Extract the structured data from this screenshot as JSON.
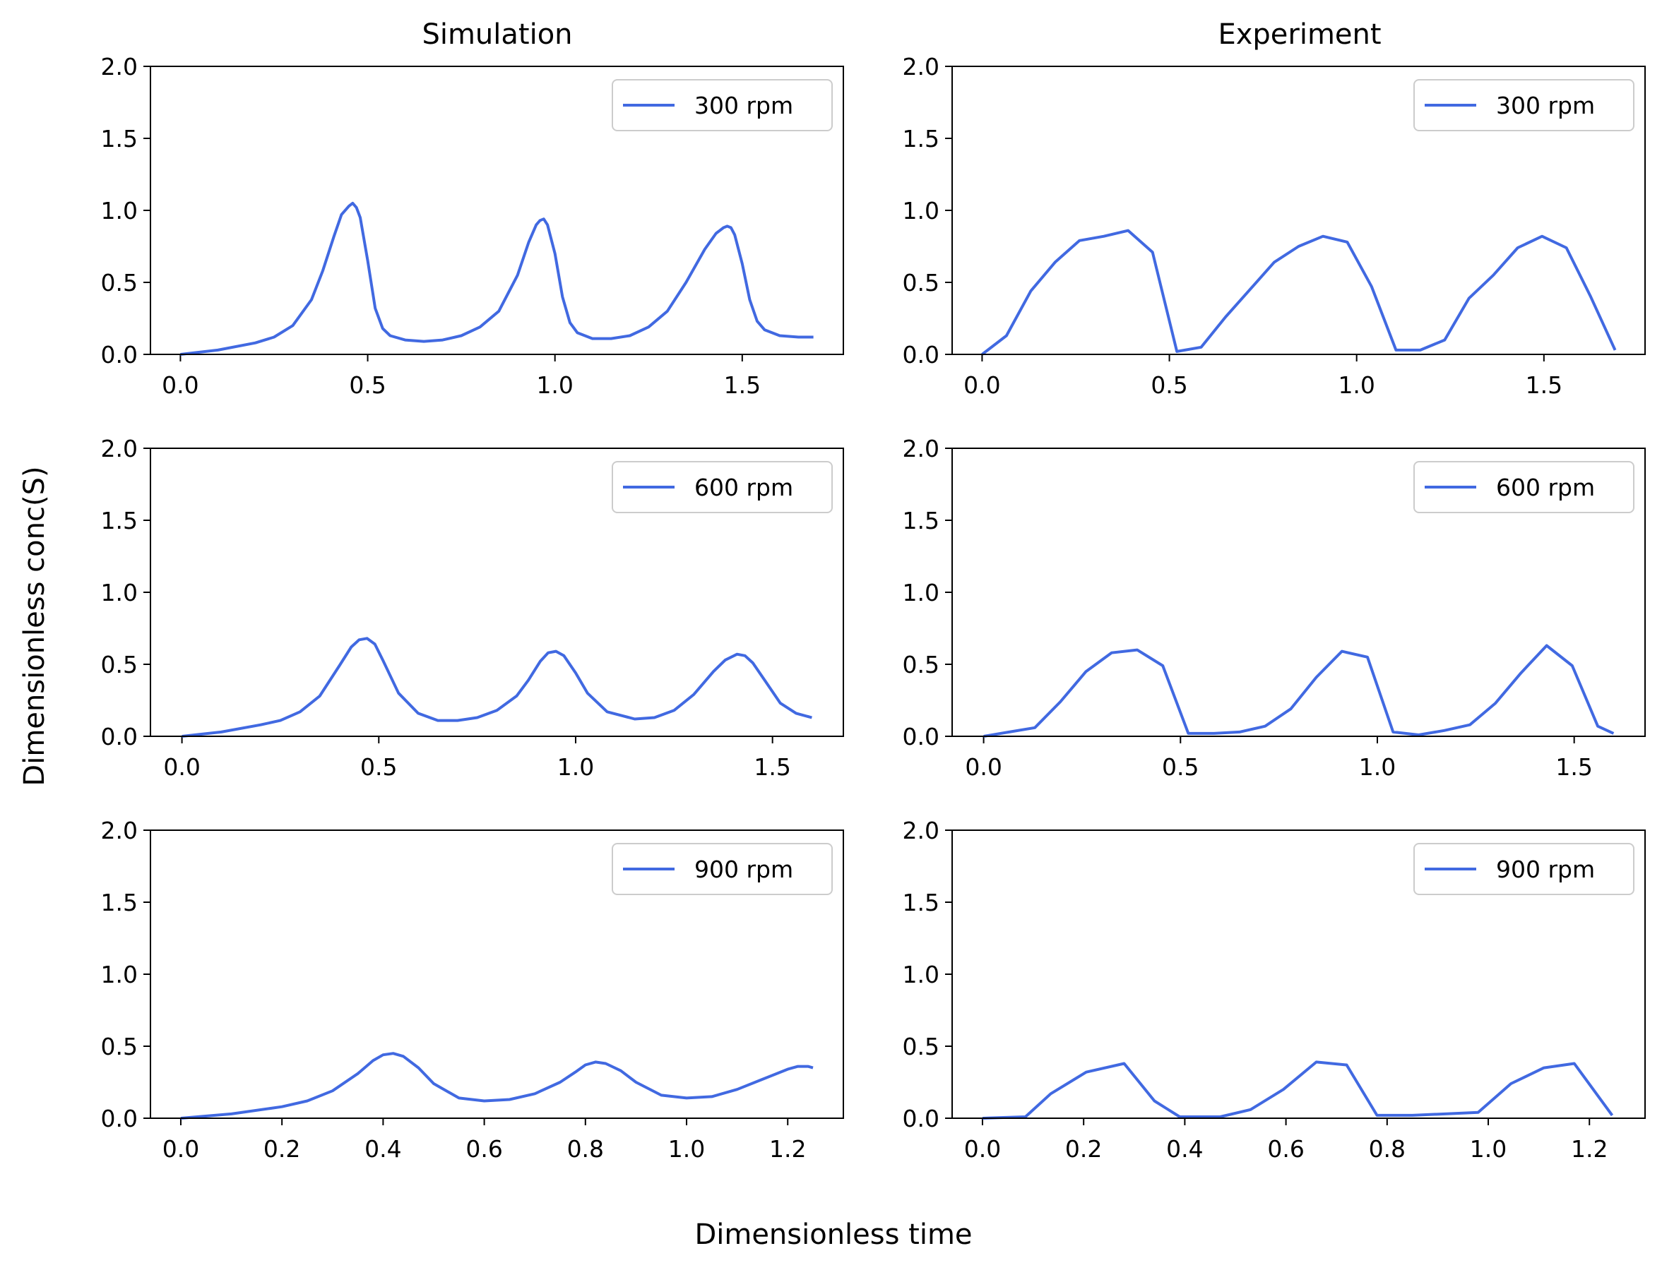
{
  "figure": {
    "xlabel": "Dimensionless time",
    "ylabel": "Dimensionless conc(S)",
    "column_titles": [
      "Simulation",
      "Experiment"
    ]
  },
  "colors": {
    "series": "#4169e1",
    "axis": "#000000",
    "legend_border": "#cccccc"
  },
  "chart_data": [
    {
      "type": "line",
      "panel": "simulation-300",
      "xlim": [
        -0.08,
        1.77
      ],
      "ylim": [
        0,
        2
      ],
      "xticks": [
        0,
        0.5,
        1,
        1.5
      ],
      "xtick_labels": [
        "0.0",
        "0.5",
        "1.0",
        "1.5"
      ],
      "yticks": [
        0,
        0.5,
        1,
        1.5,
        2
      ],
      "ytick_labels": [
        "0.0",
        "0.5",
        "1.0",
        "1.5",
        "2.0"
      ],
      "legend_position": "top-right",
      "grid": false,
      "series": [
        {
          "name": "300 rpm",
          "x": [
            0,
            0.1,
            0.2,
            0.25,
            0.3,
            0.35,
            0.38,
            0.41,
            0.43,
            0.45,
            0.46,
            0.47,
            0.48,
            0.5,
            0.52,
            0.54,
            0.56,
            0.6,
            0.65,
            0.7,
            0.75,
            0.8,
            0.85,
            0.9,
            0.93,
            0.95,
            0.96,
            0.97,
            0.98,
            1.0,
            1.02,
            1.04,
            1.06,
            1.1,
            1.15,
            1.2,
            1.25,
            1.3,
            1.35,
            1.4,
            1.43,
            1.45,
            1.46,
            1.47,
            1.48,
            1.5,
            1.52,
            1.54,
            1.56,
            1.6,
            1.65,
            1.69
          ],
          "y": [
            0,
            0.03,
            0.08,
            0.12,
            0.2,
            0.38,
            0.58,
            0.82,
            0.97,
            1.03,
            1.05,
            1.02,
            0.95,
            0.65,
            0.32,
            0.18,
            0.13,
            0.1,
            0.09,
            0.1,
            0.13,
            0.19,
            0.3,
            0.55,
            0.78,
            0.9,
            0.93,
            0.94,
            0.9,
            0.7,
            0.4,
            0.22,
            0.15,
            0.11,
            0.11,
            0.13,
            0.19,
            0.3,
            0.5,
            0.73,
            0.84,
            0.88,
            0.89,
            0.88,
            0.83,
            0.63,
            0.38,
            0.23,
            0.17,
            0.13,
            0.12,
            0.12
          ]
        }
      ]
    },
    {
      "type": "line",
      "panel": "experiment-300",
      "xlim": [
        -0.08,
        1.77
      ],
      "ylim": [
        0,
        2
      ],
      "xticks": [
        0,
        0.5,
        1,
        1.5
      ],
      "xtick_labels": [
        "0.0",
        "0.5",
        "1.0",
        "1.5"
      ],
      "yticks": [
        0,
        0.5,
        1,
        1.5,
        2
      ],
      "ytick_labels": [
        "0.0",
        "0.5",
        "1.0",
        "1.5",
        "2.0"
      ],
      "legend_position": "top-right",
      "grid": false,
      "series": [
        {
          "name": "300 rpm",
          "x": [
            0,
            0.065,
            0.13,
            0.195,
            0.26,
            0.325,
            0.39,
            0.455,
            0.52,
            0.585,
            0.65,
            0.715,
            0.78,
            0.845,
            0.91,
            0.975,
            1.04,
            1.105,
            1.17,
            1.235,
            1.3,
            1.365,
            1.43,
            1.495,
            1.56,
            1.625,
            1.69
          ],
          "y": [
            0,
            0.13,
            0.44,
            0.64,
            0.79,
            0.82,
            0.86,
            0.71,
            0.02,
            0.05,
            0.26,
            0.45,
            0.64,
            0.75,
            0.82,
            0.78,
            0.47,
            0.03,
            0.03,
            0.1,
            0.39,
            0.55,
            0.74,
            0.82,
            0.74,
            0.4,
            0.03
          ]
        }
      ]
    },
    {
      "type": "line",
      "panel": "simulation-600",
      "xlim": [
        -0.08,
        1.68
      ],
      "ylim": [
        0,
        2
      ],
      "xticks": [
        0,
        0.5,
        1,
        1.5
      ],
      "xtick_labels": [
        "0.0",
        "0.5",
        "1.0",
        "1.5"
      ],
      "yticks": [
        0,
        0.5,
        1,
        1.5,
        2
      ],
      "ytick_labels": [
        "0.0",
        "0.5",
        "1.0",
        "1.5",
        "2.0"
      ],
      "legend_position": "top-right",
      "grid": false,
      "series": [
        {
          "name": "600 rpm",
          "x": [
            0,
            0.1,
            0.2,
            0.25,
            0.3,
            0.35,
            0.4,
            0.43,
            0.45,
            0.47,
            0.49,
            0.51,
            0.55,
            0.6,
            0.65,
            0.7,
            0.75,
            0.8,
            0.85,
            0.88,
            0.91,
            0.93,
            0.95,
            0.97,
            1.0,
            1.03,
            1.08,
            1.15,
            1.2,
            1.25,
            1.3,
            1.35,
            1.38,
            1.41,
            1.43,
            1.45,
            1.48,
            1.52,
            1.56,
            1.6
          ],
          "y": [
            0,
            0.03,
            0.08,
            0.11,
            0.17,
            0.28,
            0.49,
            0.62,
            0.67,
            0.68,
            0.64,
            0.53,
            0.3,
            0.16,
            0.11,
            0.11,
            0.13,
            0.18,
            0.28,
            0.39,
            0.52,
            0.58,
            0.59,
            0.56,
            0.44,
            0.3,
            0.17,
            0.12,
            0.13,
            0.18,
            0.29,
            0.45,
            0.53,
            0.57,
            0.56,
            0.51,
            0.39,
            0.23,
            0.16,
            0.13
          ]
        }
      ]
    },
    {
      "type": "line",
      "panel": "experiment-600",
      "xlim": [
        -0.08,
        1.68
      ],
      "ylim": [
        0,
        2
      ],
      "xticks": [
        0,
        0.5,
        1,
        1.5
      ],
      "xtick_labels": [
        "0.0",
        "0.5",
        "1.0",
        "1.5"
      ],
      "yticks": [
        0,
        0.5,
        1,
        1.5,
        2
      ],
      "ytick_labels": [
        "0.0",
        "0.5",
        "1.0",
        "1.5",
        "2.0"
      ],
      "legend_position": "top-right",
      "grid": false,
      "series": [
        {
          "name": "600 rpm",
          "x": [
            0,
            0.065,
            0.13,
            0.195,
            0.26,
            0.325,
            0.39,
            0.455,
            0.52,
            0.585,
            0.65,
            0.715,
            0.78,
            0.845,
            0.91,
            0.975,
            1.04,
            1.105,
            1.17,
            1.235,
            1.3,
            1.365,
            1.43,
            1.495,
            1.56,
            1.6
          ],
          "y": [
            0,
            0.03,
            0.06,
            0.24,
            0.45,
            0.58,
            0.6,
            0.49,
            0.02,
            0.02,
            0.03,
            0.07,
            0.19,
            0.41,
            0.59,
            0.55,
            0.03,
            0.01,
            0.04,
            0.08,
            0.23,
            0.44,
            0.63,
            0.49,
            0.07,
            0.02
          ]
        }
      ]
    },
    {
      "type": "line",
      "panel": "simulation-900",
      "xlim": [
        -0.06,
        1.31
      ],
      "ylim": [
        0,
        2
      ],
      "xticks": [
        0,
        0.2,
        0.4,
        0.6,
        0.8,
        1.0,
        1.2
      ],
      "xtick_labels": [
        "0.0",
        "0.2",
        "0.4",
        "0.6",
        "0.8",
        "1.0",
        "1.2"
      ],
      "yticks": [
        0,
        0.5,
        1,
        1.5,
        2
      ],
      "ytick_labels": [
        "0.0",
        "0.5",
        "1.0",
        "1.5",
        "2.0"
      ],
      "legend_position": "top-right",
      "grid": false,
      "series": [
        {
          "name": "900 rpm",
          "x": [
            0,
            0.1,
            0.2,
            0.25,
            0.3,
            0.35,
            0.38,
            0.4,
            0.42,
            0.44,
            0.47,
            0.5,
            0.55,
            0.6,
            0.65,
            0.7,
            0.75,
            0.78,
            0.8,
            0.82,
            0.84,
            0.87,
            0.9,
            0.95,
            1.0,
            1.05,
            1.1,
            1.15,
            1.2,
            1.22,
            1.24,
            1.25
          ],
          "y": [
            0,
            0.03,
            0.08,
            0.12,
            0.19,
            0.31,
            0.4,
            0.44,
            0.45,
            0.43,
            0.35,
            0.24,
            0.14,
            0.12,
            0.13,
            0.17,
            0.25,
            0.32,
            0.37,
            0.39,
            0.38,
            0.33,
            0.25,
            0.16,
            0.14,
            0.15,
            0.2,
            0.27,
            0.34,
            0.36,
            0.36,
            0.35
          ]
        }
      ]
    },
    {
      "type": "line",
      "panel": "experiment-900",
      "xlim": [
        -0.06,
        1.31
      ],
      "ylim": [
        0,
        2
      ],
      "xticks": [
        0,
        0.2,
        0.4,
        0.6,
        0.8,
        1.0,
        1.2
      ],
      "xtick_labels": [
        "0.0",
        "0.2",
        "0.4",
        "0.6",
        "0.8",
        "1.0",
        "1.2"
      ],
      "yticks": [
        0,
        0.5,
        1,
        1.5,
        2
      ],
      "ytick_labels": [
        "0.0",
        "0.5",
        "1.0",
        "1.5",
        "2.0"
      ],
      "legend_position": "top-right",
      "grid": false,
      "series": [
        {
          "name": "900 rpm",
          "x": [
            0,
            0.085,
            0.135,
            0.205,
            0.28,
            0.34,
            0.39,
            0.47,
            0.53,
            0.595,
            0.66,
            0.72,
            0.78,
            0.85,
            0.98,
            1.045,
            1.11,
            1.17,
            1.245
          ],
          "y": [
            0,
            0.01,
            0.17,
            0.32,
            0.38,
            0.12,
            0.01,
            0.01,
            0.06,
            0.2,
            0.39,
            0.37,
            0.02,
            0.02,
            0.04,
            0.24,
            0.35,
            0.38,
            0.02
          ]
        }
      ]
    }
  ]
}
